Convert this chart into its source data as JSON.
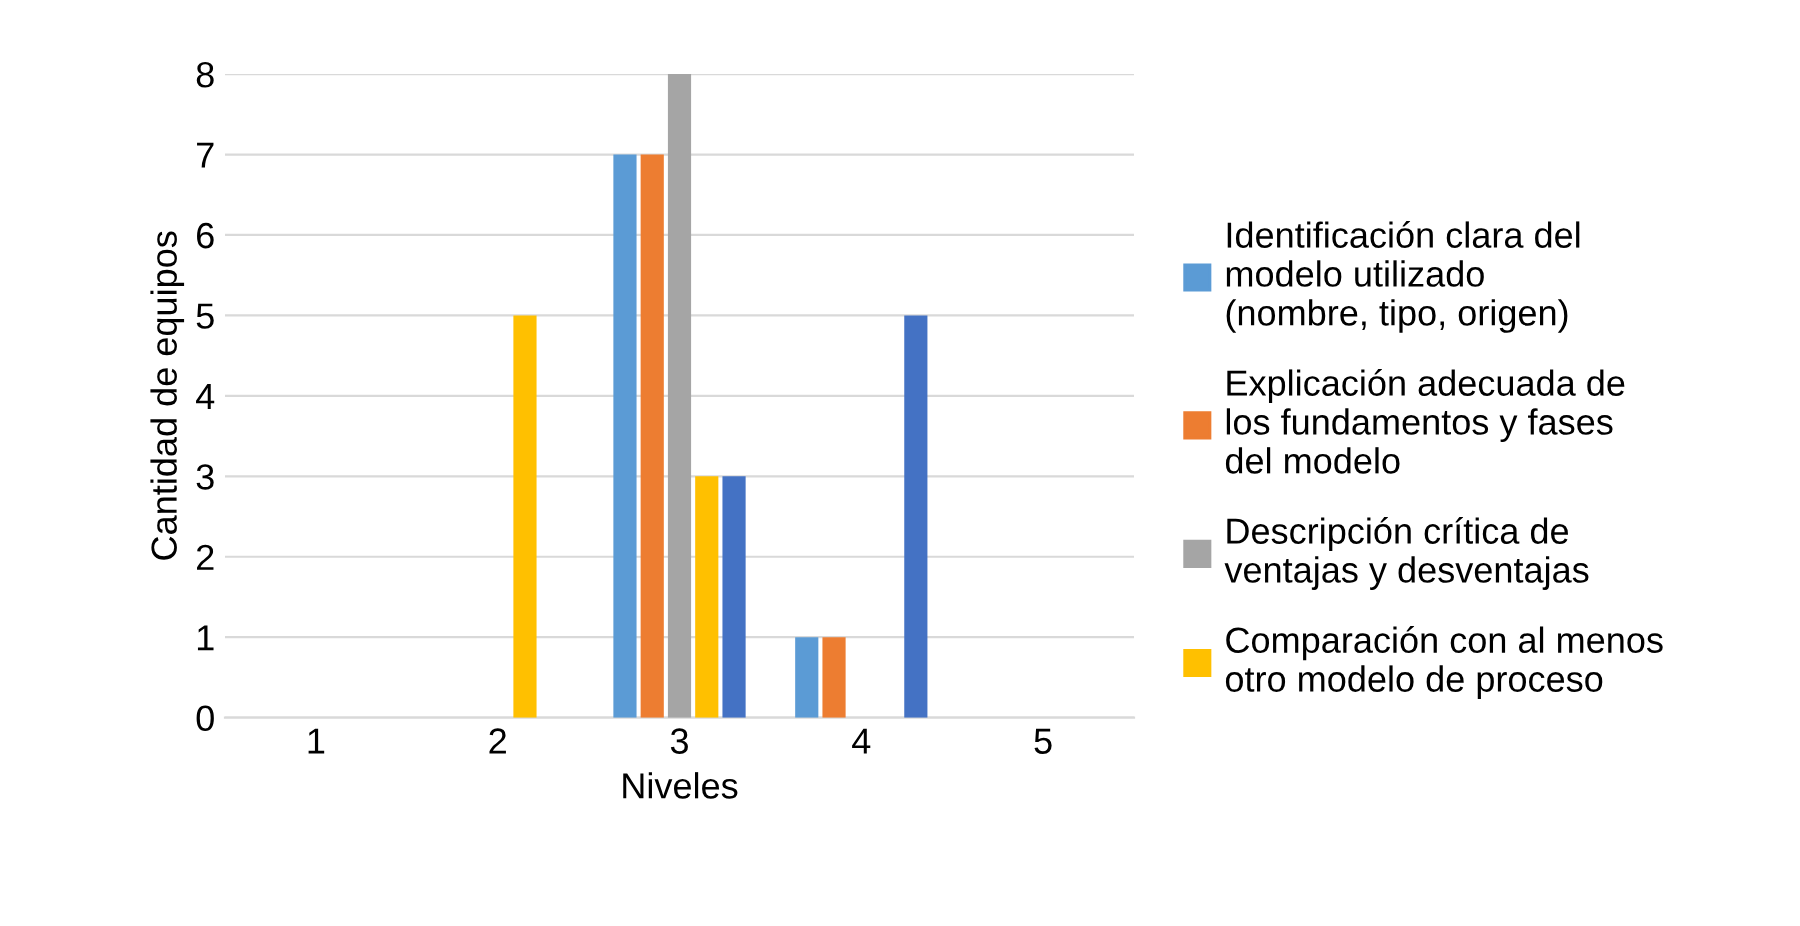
{
  "chart_data": {
    "type": "bar",
    "xlabel": "Niveles",
    "ylabel": "Cantidad de equipos",
    "categories": [
      "1",
      "2",
      "3",
      "4",
      "5"
    ],
    "series": [
      {
        "name": "Identificación clara del modelo utilizado (nombre, tipo, origen)",
        "color": "#5b9bd5",
        "values": [
          0,
          0,
          7,
          1,
          0
        ]
      },
      {
        "name": "Explicación adecuada de los fundamentos y fases del modelo",
        "color": "#ed7d31",
        "values": [
          0,
          0,
          7,
          1,
          0
        ]
      },
      {
        "name": "Descripción crítica de ventajas y desventajas",
        "color": "#a5a5a5",
        "values": [
          0,
          0,
          8,
          0,
          0
        ]
      },
      {
        "name": "Comparación con al menos otro modelo de proceso",
        "color": "#ffc000",
        "values": [
          0,
          5,
          3,
          0,
          0
        ]
      },
      {
        "color": "#4472c4",
        "values": [
          0,
          0,
          3,
          5,
          0
        ]
      }
    ],
    "ylim": [
      0,
      8
    ],
    "yticks": [
      0,
      1,
      2,
      3,
      4,
      5,
      6,
      7,
      8
    ],
    "grid": "y",
    "legend": "right"
  }
}
